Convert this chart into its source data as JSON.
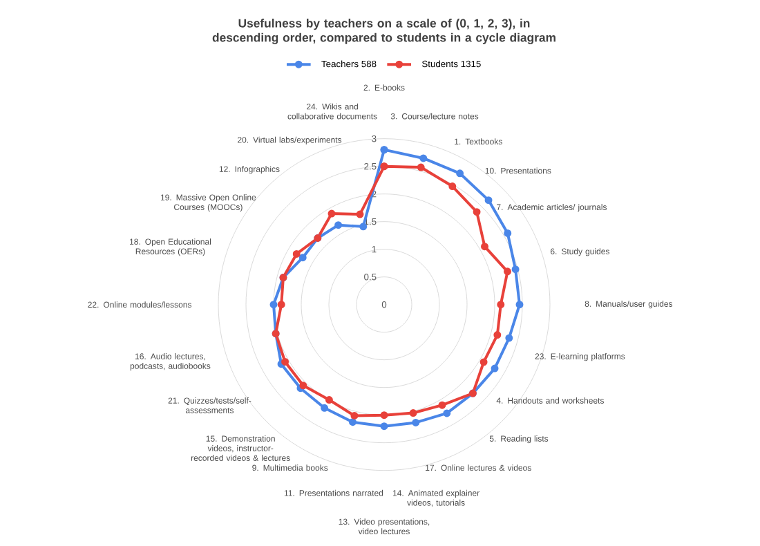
{
  "chart_data": {
    "type": "radar",
    "title": "Usefulness by teachers on a scale of (0, 1, 2, 3), in descending order, compared to students in a cycle diagram",
    "categories": [
      "2. E-books",
      "3. Course/lecture notes",
      "1. Textbooks",
      "10. Presentations",
      "7. Academic articles/ journals",
      "6. Study guides",
      "8. Manuals/user guides",
      "23. E-learning platforms",
      "4. Handouts and worksheets",
      "5. Reading lists",
      "17. Online lectures & videos",
      "14. Animated explainer videos, tutorials",
      "13. Video presentations, video lectures",
      "11. Presentations narrated",
      "9. Multimedia books",
      "15. Demonstration videos, instructor-recorded videos & lectures",
      "21. Quizzes/tests/self-assessments",
      "16. Audio lectures, podcasts, audiobooks",
      "22. Online modules/lessons",
      "18. Open Educational Resources (OERs)",
      "19. Massive Open Online Courses (MOOCs)",
      "12. Infographics",
      "20. Virtual labs/experiments",
      "24. Wikis and collaborative documents"
    ],
    "series": [
      {
        "name": "Teachers 588",
        "color": "#4a86e8",
        "values": [
          2.8,
          2.74,
          2.74,
          2.67,
          2.58,
          2.46,
          2.45,
          2.34,
          2.31,
          2.27,
          2.27,
          2.21,
          2.2,
          2.2,
          2.16,
          2.14,
          2.15,
          2.03,
          2.0,
          1.89,
          1.7,
          1.7,
          1.66,
          1.46
        ]
      },
      {
        "name": "Students 1315",
        "color": "#e8413a",
        "values": [
          2.5,
          2.57,
          2.47,
          2.37,
          2.1,
          2.31,
          2.11,
          2.12,
          2.08,
          2.27,
          2.1,
          2.03,
          2.0,
          2.08,
          1.99,
          2.07,
          2.07,
          2.03,
          1.86,
          1.89,
          1.83,
          1.7,
          1.9,
          1.69
        ]
      }
    ],
    "ylim": [
      0,
      3
    ],
    "yticks": [
      0,
      0.5,
      1,
      1.5,
      2,
      2.5,
      3
    ],
    "grid": true,
    "legend": "top",
    "marker": "circle",
    "line_style": "solid"
  }
}
